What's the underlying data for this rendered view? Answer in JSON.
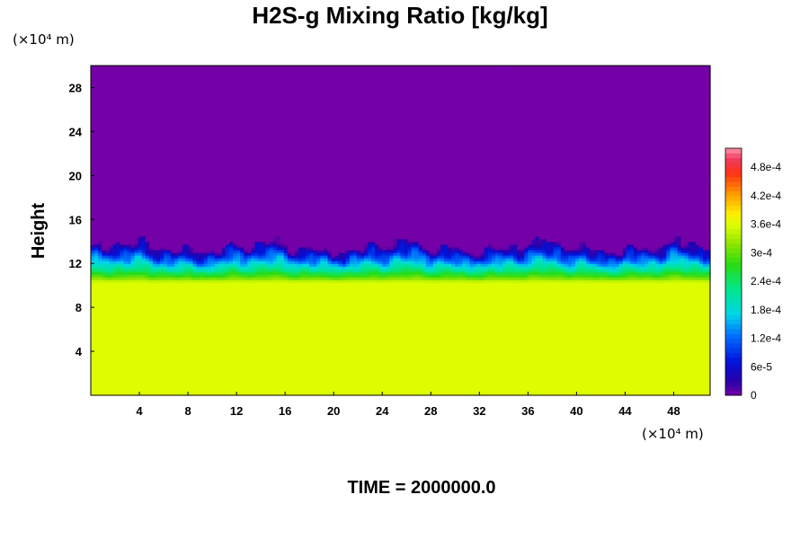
{
  "chart_data": {
    "type": "heatmap",
    "title": "H2S-g Mixing Ratio [kg/kg]",
    "ylabel": "Height",
    "x_unit": "(×10⁴ m)",
    "y_unit": "(×10⁴ m)",
    "xlim": [
      0,
      51
    ],
    "ylim": [
      0,
      30
    ],
    "x_ticks": [
      4,
      8,
      12,
      16,
      20,
      24,
      28,
      32,
      36,
      40,
      44,
      48
    ],
    "y_ticks": [
      4,
      8,
      12,
      16,
      20,
      24,
      28
    ],
    "colorbar": {
      "range": [
        0,
        0.00052
      ],
      "ticks": [
        {
          "value": 0,
          "label": "0"
        },
        {
          "value": 6e-05,
          "label": "6e-5"
        },
        {
          "value": 0.00012,
          "label": "1.2e-4"
        },
        {
          "value": 0.00018,
          "label": "1.8e-4"
        },
        {
          "value": 0.00024,
          "label": "2.4e-4"
        },
        {
          "value": 0.0003,
          "label": "3e-4"
        },
        {
          "value": 0.00036,
          "label": "3.6e-4"
        },
        {
          "value": 0.00042,
          "label": "4.2e-4"
        },
        {
          "value": 0.00048,
          "label": "4.8e-4"
        }
      ]
    },
    "field_description": {
      "lower_layer_value": 0.00036,
      "upper_layer_value": 0,
      "lower_uniform_top_height": 10.3,
      "mixing_top_height_range": [
        13,
        15
      ]
    },
    "time_label": "TIME = 2000000.0"
  },
  "colors": {
    "low": "#7400a8",
    "lower_layer": "#dcff00"
  }
}
